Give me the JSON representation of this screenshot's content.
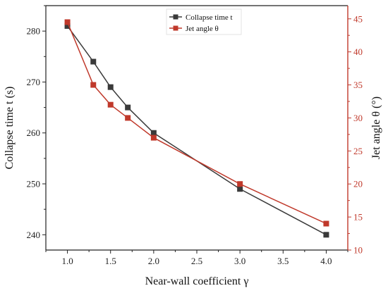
{
  "chart_data": {
    "type": "line",
    "title": "",
    "x": [
      1.0,
      1.3,
      1.5,
      1.7,
      2.0,
      3.0,
      4.0
    ],
    "xlabel": "Near-wall coefficient γ",
    "xlim": [
      0.75,
      4.25
    ],
    "xticks": [
      "1.0",
      "1.5",
      "2.0",
      "2.5",
      "3.0",
      "3.5",
      "4.0"
    ],
    "xtick_values": [
      1.0,
      1.5,
      2.0,
      2.5,
      3.0,
      3.5,
      4.0
    ],
    "y_left": {
      "label": "Collapse time t (s)",
      "lim": [
        237,
        285
      ],
      "ticks": [
        240,
        250,
        260,
        270,
        280
      ],
      "tick_labels": [
        "240",
        "250",
        "260",
        "270",
        "280"
      ]
    },
    "y_right": {
      "label": "Jet angle θ (°)",
      "lim": [
        10,
        47
      ],
      "ticks": [
        10,
        15,
        20,
        25,
        30,
        35,
        40,
        45
      ],
      "tick_labels": [
        "10",
        "15",
        "20",
        "25",
        "30",
        "35",
        "40",
        "45"
      ]
    },
    "series": [
      {
        "name": "Collapse time t",
        "axis": "left",
        "color": "#3a3a3a",
        "marker": "square",
        "values": [
          281,
          274,
          269,
          265,
          260,
          249,
          240
        ]
      },
      {
        "name": "Jet angle θ",
        "axis": "right",
        "color": "#c0392b",
        "marker": "square",
        "values": [
          44.5,
          35,
          32,
          30,
          27,
          20,
          14
        ]
      }
    ],
    "legend": "top-center",
    "grid": false
  }
}
